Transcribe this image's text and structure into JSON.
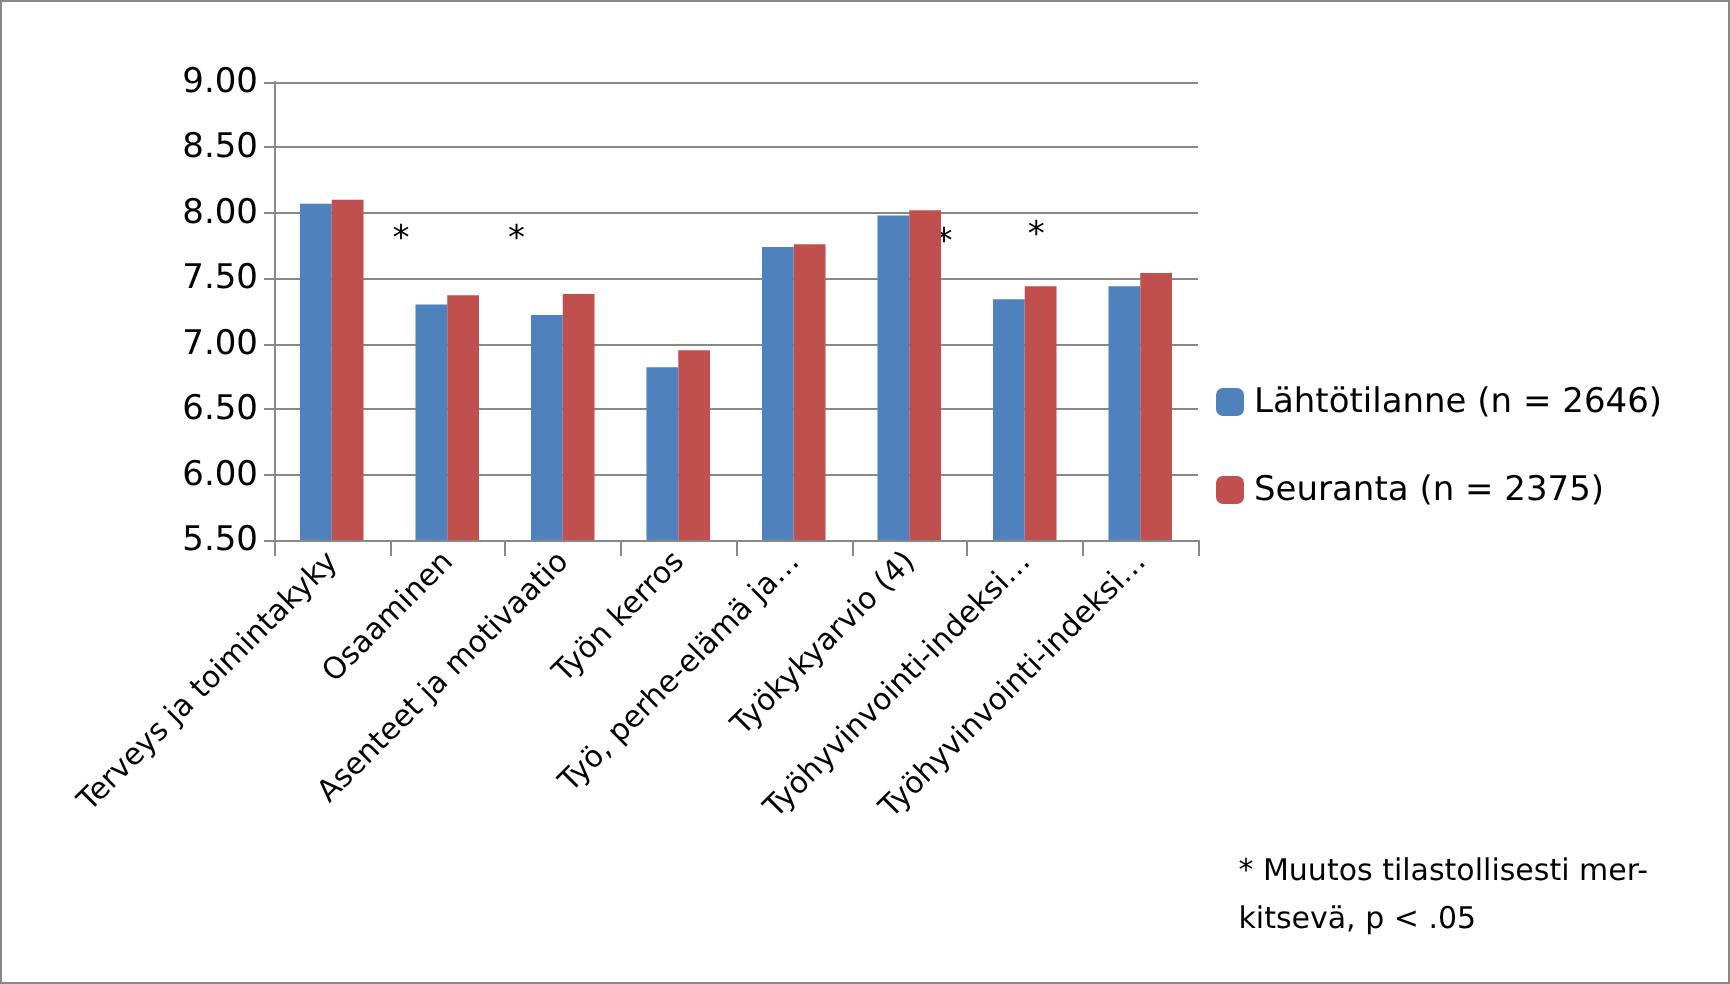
{
  "chart_data": {
    "type": "bar",
    "categories": [
      "Terveys ja toimintakyky",
      "Osaaminen",
      "Asenteet ja motivaatio",
      "Työn kerros",
      "Työ, perhe-elämä ja…",
      "Työkykyarvio (4)",
      "Työhyvinvointi-indeksi…",
      "Työhyvinvointi-indeksi…"
    ],
    "series": [
      {
        "name": "Lähtötilanne (n = 2646)",
        "color": "#4f81bd",
        "values": [
          8.07,
          7.3,
          7.22,
          6.82,
          7.74,
          7.98,
          7.34,
          7.44
        ]
      },
      {
        "name": "Seuranta (n = 2375)",
        "color": "#c0504d",
        "values": [
          8.1,
          7.37,
          7.38,
          6.95,
          7.76,
          8.02,
          7.44,
          7.54
        ]
      }
    ],
    "ylim": [
      5.5,
      9
    ],
    "yticks": [
      {
        "value": 5.5,
        "label": "5.50"
      },
      {
        "value": 6,
        "label": "6.00"
      },
      {
        "value": 6.5,
        "label": "6.50"
      },
      {
        "value": 7,
        "label": "7.00"
      },
      {
        "value": 7.5,
        "label": "7.50"
      },
      {
        "value": 8,
        "label": "8.00"
      },
      {
        "value": 8.5,
        "label": "8.50"
      },
      {
        "value": 9,
        "label": "9.00"
      }
    ],
    "grid": "y",
    "legend": "right",
    "annotations": [
      "*",
      "*",
      "*",
      "*",
      "* Muutos tilastollisesti mer-\nkitsevä, p < .05"
    ]
  }
}
